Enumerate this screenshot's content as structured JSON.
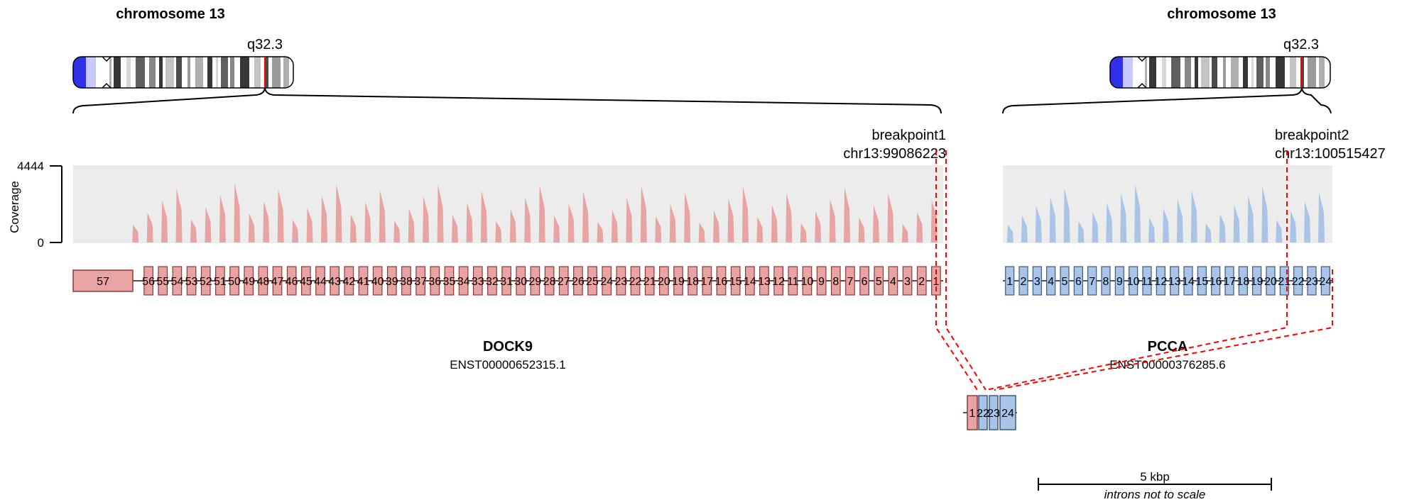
{
  "left": {
    "chromosome_title": "chromosome 13",
    "band_label": "q32.3",
    "breakpoint_name": "breakpoint1",
    "breakpoint_pos": "chr13:99086223",
    "gene_name": "DOCK9",
    "transcript": "ENST00000652315.1",
    "color": "#e8a3a3",
    "exons": [
      "57",
      "56",
      "55",
      "54",
      "53",
      "52",
      "51",
      "50",
      "49",
      "48",
      "47",
      "46",
      "45",
      "44",
      "43",
      "42",
      "41",
      "40",
      "39",
      "38",
      "37",
      "36",
      "35",
      "34",
      "33",
      "32",
      "31",
      "30",
      "29",
      "28",
      "27",
      "26",
      "25",
      "24",
      "23",
      "22",
      "21",
      "20",
      "19",
      "18",
      "17",
      "16",
      "15",
      "14",
      "13",
      "12",
      "11",
      "10",
      "9",
      "8",
      "7",
      "6",
      "5",
      "4",
      "3",
      "2",
      "1"
    ]
  },
  "right": {
    "chromosome_title": "chromosome 13",
    "band_label": "q32.3",
    "breakpoint_name": "breakpoint2",
    "breakpoint_pos": "chr13:100515427",
    "gene_name": "PCCA",
    "transcript": "ENST00000376285.6",
    "color": "#a9c4e6",
    "exons": [
      "1",
      "2",
      "3",
      "4",
      "5",
      "6",
      "7",
      "8",
      "9",
      "10",
      "11",
      "12",
      "13",
      "14",
      "15",
      "16",
      "17",
      "18",
      "19",
      "20",
      "21",
      "22",
      "23",
      "24"
    ]
  },
  "coverage": {
    "axis_title": "Coverage",
    "max_label": "4444",
    "min_label": "0"
  },
  "fusion": {
    "exons_left": [
      "1"
    ],
    "exons_right": [
      "22",
      "23",
      "24"
    ]
  },
  "scale": {
    "label": "5 kbp",
    "note": "introns not to scale"
  },
  "colors": {
    "left_exon_stroke": "#8b3a3a",
    "right_exon_stroke": "#3d5a80",
    "breakpoint_line": "#ff0000",
    "coverage_bg": "#ececec"
  }
}
